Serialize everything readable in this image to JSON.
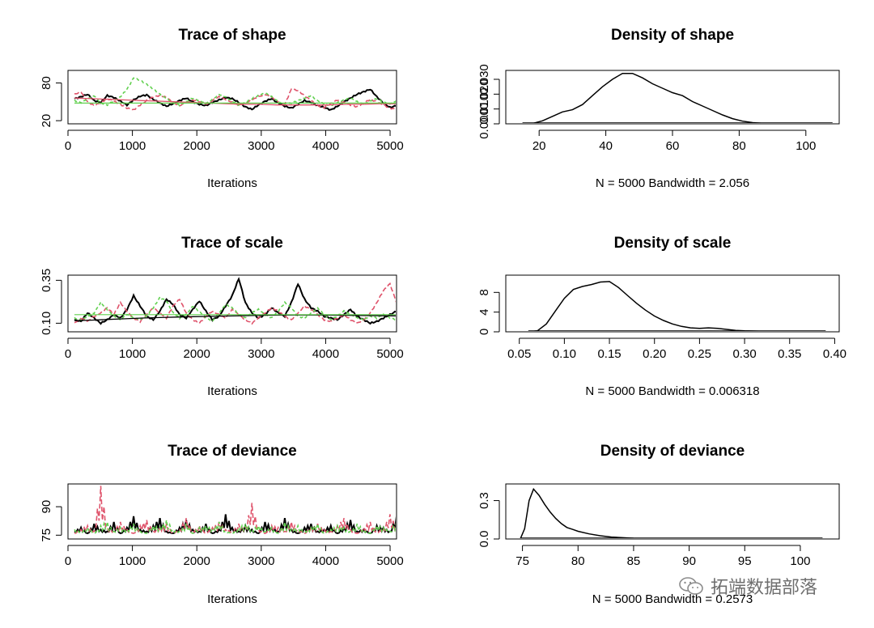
{
  "chart_data": [
    {
      "type": "line",
      "title": "Trace of shape",
      "xlabel": "Iterations",
      "ylabel": "",
      "xlim": [
        0,
        5100
      ],
      "ylim": [
        15,
        100
      ],
      "xticks": [
        0,
        1000,
        2000,
        3000,
        4000,
        5000
      ],
      "yticks": [
        20,
        80
      ],
      "trace": {
        "x_start": 100,
        "x_end": 5100,
        "mean_level": 48,
        "colors": {
          "chain1": "#000000",
          "chain2": "#df536b",
          "chain3": "#61d04f",
          "smooth": "#df536b"
        },
        "series": [
          {
            "values": [
              55,
              58,
              62,
              52,
              49,
              60,
              57,
              51,
              45,
              53,
              59,
              61,
              54,
              48,
              43,
              47,
              52,
              56,
              50,
              46,
              44,
              49,
              53,
              57,
              55,
              49,
              42,
              38,
              45,
              51,
              55,
              48,
              43,
              40,
              46,
              52,
              49,
              44,
              41,
              37,
              43,
              50,
              56,
              62,
              66,
              70,
              58,
              48,
              41,
              44
            ]
          },
          {
            "values": [
              62,
              66,
              50,
              44,
              49,
              55,
              51,
              46,
              40,
              37,
              45,
              52,
              58,
              60,
              57,
              49,
              44,
              48,
              53,
              50,
              46,
              52,
              58,
              54,
              49,
              44,
              48,
              53,
              58,
              62,
              57,
              50,
              46,
              70,
              68,
              60,
              52,
              44,
              41,
              47,
              53,
              49,
              45,
              42,
              48,
              54,
              50,
              45,
              40,
              38
            ]
          },
          {
            "values": [
              52,
              49,
              55,
              60,
              48,
              45,
              52,
              58,
              70,
              88,
              84,
              78,
              70,
              62,
              55,
              48,
              45,
              50,
              56,
              52,
              48,
              54,
              62,
              58,
              51,
              45,
              49,
              55,
              60,
              64,
              58,
              50,
              45,
              48,
              52,
              56,
              60,
              52,
              47,
              44,
              49,
              53,
              56,
              50,
              46,
              51,
              55,
              50,
              47,
              52
            ]
          }
        ],
        "smooth": [
          56,
          55,
          54,
          53,
          52,
          51,
          50,
          49,
          48,
          47,
          46,
          46,
          45,
          45,
          45,
          45,
          46,
          46,
          47,
          47
        ]
      }
    },
    {
      "type": "area",
      "title": "Density of shape",
      "xlabel": "N = 5000   Bandwidth = 2.056",
      "xlim": [
        10,
        110
      ],
      "ylim": [
        0,
        0.036
      ],
      "xticks": [
        20,
        40,
        60,
        80,
        100
      ],
      "yticks": [
        0.0,
        0.01,
        0.02,
        0.03
      ],
      "ytick_labels": [
        "0.000",
        "0.010",
        "0.020",
        "0.030"
      ],
      "density": {
        "x": [
          15,
          18,
          21,
          24,
          27,
          30,
          33,
          36,
          39,
          42,
          45,
          48,
          51,
          54,
          57,
          60,
          63,
          66,
          69,
          72,
          75,
          78,
          81,
          84,
          87,
          90,
          95,
          100,
          108
        ],
        "y": [
          0.0,
          0.0002,
          0.002,
          0.005,
          0.008,
          0.0095,
          0.013,
          0.019,
          0.025,
          0.03,
          0.034,
          0.034,
          0.031,
          0.027,
          0.024,
          0.021,
          0.019,
          0.015,
          0.012,
          0.009,
          0.006,
          0.0035,
          0.0018,
          0.0008,
          0.0003,
          0.0001,
          0.0,
          0.0,
          0.0
        ]
      }
    },
    {
      "type": "line",
      "title": "Trace of scale",
      "xlabel": "Iterations",
      "ylabel": "",
      "xlim": [
        0,
        5100
      ],
      "ylim": [
        0.05,
        0.38
      ],
      "xticks": [
        0,
        1000,
        2000,
        3000,
        4000,
        5000
      ],
      "yticks": [
        0.1,
        0.35
      ],
      "ytick_labels": [
        "0.10",
        "0.35"
      ],
      "trace": {
        "x_start": 100,
        "x_end": 5100,
        "mean_level": 0.15,
        "colors": {
          "chain1": "#000000",
          "chain2": "#df536b",
          "chain3": "#61d04f",
          "smooth": "#000000"
        },
        "series": [
          {
            "values": [
              0.12,
              0.11,
              0.16,
              0.13,
              0.1,
              0.12,
              0.15,
              0.13,
              0.18,
              0.26,
              0.2,
              0.14,
              0.12,
              0.17,
              0.24,
              0.21,
              0.15,
              0.13,
              0.18,
              0.23,
              0.17,
              0.12,
              0.14,
              0.2,
              0.26,
              0.36,
              0.22,
              0.16,
              0.13,
              0.15,
              0.19,
              0.16,
              0.14,
              0.22,
              0.33,
              0.24,
              0.19,
              0.17,
              0.14,
              0.13,
              0.12,
              0.15,
              0.18,
              0.14,
              0.12,
              0.1,
              0.11,
              0.13,
              0.15,
              0.17
            ]
          },
          {
            "values": [
              0.1,
              0.13,
              0.11,
              0.14,
              0.16,
              0.19,
              0.15,
              0.22,
              0.17,
              0.13,
              0.11,
              0.15,
              0.19,
              0.16,
              0.13,
              0.2,
              0.24,
              0.16,
              0.12,
              0.1,
              0.14,
              0.17,
              0.15,
              0.13,
              0.18,
              0.15,
              0.12,
              0.1,
              0.13,
              0.16,
              0.19,
              0.17,
              0.14,
              0.12,
              0.16,
              0.2,
              0.18,
              0.15,
              0.12,
              0.11,
              0.13,
              0.15,
              0.12,
              0.1,
              0.12,
              0.16,
              0.22,
              0.29,
              0.33,
              0.22
            ]
          },
          {
            "values": [
              0.13,
              0.12,
              0.14,
              0.16,
              0.22,
              0.18,
              0.14,
              0.12,
              0.15,
              0.13,
              0.12,
              0.14,
              0.19,
              0.25,
              0.23,
              0.16,
              0.13,
              0.15,
              0.2,
              0.17,
              0.13,
              0.11,
              0.16,
              0.21,
              0.19,
              0.15,
              0.13,
              0.16,
              0.18,
              0.15,
              0.13,
              0.17,
              0.22,
              0.19,
              0.14,
              0.13,
              0.16,
              0.19,
              0.15,
              0.12,
              0.14,
              0.17,
              0.15,
              0.13,
              0.12,
              0.14,
              0.13,
              0.15,
              0.13,
              0.12
            ]
          }
        ],
        "smooth": [
          0.115,
          0.118,
          0.122,
          0.126,
          0.13,
          0.133,
          0.136,
          0.138,
          0.14,
          0.142,
          0.144,
          0.146,
          0.147,
          0.148,
          0.148,
          0.147,
          0.146,
          0.145,
          0.144,
          0.143
        ]
      }
    },
    {
      "type": "area",
      "title": "Density of scale",
      "xlabel": "N = 5000   Bandwidth = 0.006318",
      "xlim": [
        0.035,
        0.405
      ],
      "ylim": [
        0,
        11.5
      ],
      "xticks": [
        0.05,
        0.1,
        0.15,
        0.2,
        0.25,
        0.3,
        0.35,
        0.4
      ],
      "xtick_labels": [
        "0.05",
        "0.10",
        "0.15",
        "0.20",
        "0.25",
        "0.30",
        "0.35",
        "0.40"
      ],
      "yticks": [
        0,
        4,
        8
      ],
      "density": {
        "x": [
          0.06,
          0.07,
          0.08,
          0.09,
          0.1,
          0.11,
          0.12,
          0.13,
          0.14,
          0.15,
          0.16,
          0.17,
          0.18,
          0.19,
          0.2,
          0.21,
          0.22,
          0.23,
          0.24,
          0.25,
          0.26,
          0.27,
          0.28,
          0.29,
          0.3,
          0.32,
          0.34,
          0.36,
          0.39
        ],
        "y": [
          0.0,
          0.2,
          1.6,
          4.2,
          6.8,
          8.6,
          9.2,
          9.6,
          10.1,
          10.2,
          9.0,
          7.4,
          5.8,
          4.4,
          3.2,
          2.3,
          1.6,
          1.1,
          0.8,
          0.7,
          0.8,
          0.7,
          0.5,
          0.3,
          0.2,
          0.1,
          0.05,
          0.02,
          0.0
        ]
      }
    },
    {
      "type": "line",
      "title": "Trace of deviance",
      "xlabel": "Iterations",
      "ylabel": "",
      "xlim": [
        0,
        5100
      ],
      "ylim": [
        73,
        102
      ],
      "xticks": [
        0,
        1000,
        2000,
        3000,
        4000,
        5000
      ],
      "yticks": [
        75,
        90
      ],
      "trace": {
        "x_start": 100,
        "x_end": 5100,
        "baseline": 76,
        "colors": {
          "chain1": "#000000",
          "chain2": "#df536b",
          "chain3": "#61d04f"
        },
        "series": [
          {
            "values": [
              77,
              79,
              76,
              81,
              78,
              77,
              82,
              76,
              79,
              85,
              78,
              77,
              80,
              84,
              77,
              76,
              79,
              83,
              78,
              77,
              81,
              76,
              78,
              86,
              79,
              77,
              80,
              78,
              76,
              82,
              79,
              77,
              84,
              78,
              76,
              79,
              81,
              77,
              78,
              80,
              76,
              79,
              83,
              77,
              78,
              76,
              80,
              79,
              77,
              85
            ]
          },
          {
            "values": [
              76,
              78,
              80,
              77,
              101,
              79,
              77,
              82,
              78,
              76,
              80,
              83,
              77,
              79,
              81,
              76,
              78,
              84,
              77,
              80,
              76,
              79,
              82,
              78,
              77,
              81,
              79,
              92,
              78,
              76,
              80,
              79,
              77,
              82,
              78,
              76,
              79,
              81,
              78,
              77,
              80,
              84,
              78,
              76,
              79,
              82,
              77,
              78,
              86,
              79
            ]
          },
          {
            "values": [
              78,
              77,
              79,
              76,
              80,
              82,
              77,
              79,
              78,
              81,
              77,
              76,
              80,
              79,
              83,
              78,
              77,
              81,
              76,
              79,
              80,
              78,
              82,
              77,
              76,
              79,
              81,
              78,
              80,
              77,
              79,
              76,
              82,
              78,
              80,
              77,
              79,
              81,
              76,
              78,
              80,
              79,
              77,
              81,
              78,
              76,
              80,
              79,
              77,
              82
            ]
          }
        ]
      }
    },
    {
      "type": "area",
      "title": "Density of deviance",
      "xlabel": "N = 5000   Bandwidth = 0.2573",
      "xlim": [
        73.5,
        103.5
      ],
      "ylim": [
        0,
        0.43
      ],
      "xticks": [
        75,
        80,
        85,
        90,
        95,
        100
      ],
      "yticks": [
        0.0,
        0.3
      ],
      "ytick_labels": [
        "0.0",
        "0.3"
      ],
      "density": {
        "x": [
          74.8,
          75.2,
          75.6,
          76.0,
          76.5,
          77.0,
          77.5,
          78.0,
          78.5,
          79.0,
          79.5,
          80.0,
          81.0,
          82.0,
          83.0,
          84.0,
          85.0,
          87.0,
          90.0,
          95.0,
          102.0
        ],
        "y": [
          0.0,
          0.08,
          0.3,
          0.39,
          0.34,
          0.27,
          0.21,
          0.16,
          0.12,
          0.09,
          0.075,
          0.06,
          0.04,
          0.025,
          0.015,
          0.01,
          0.006,
          0.003,
          0.001,
          0.0,
          0.0
        ]
      }
    }
  ],
  "watermark": {
    "text": "拓端数据部落",
    "icon": "wechat-icon"
  }
}
